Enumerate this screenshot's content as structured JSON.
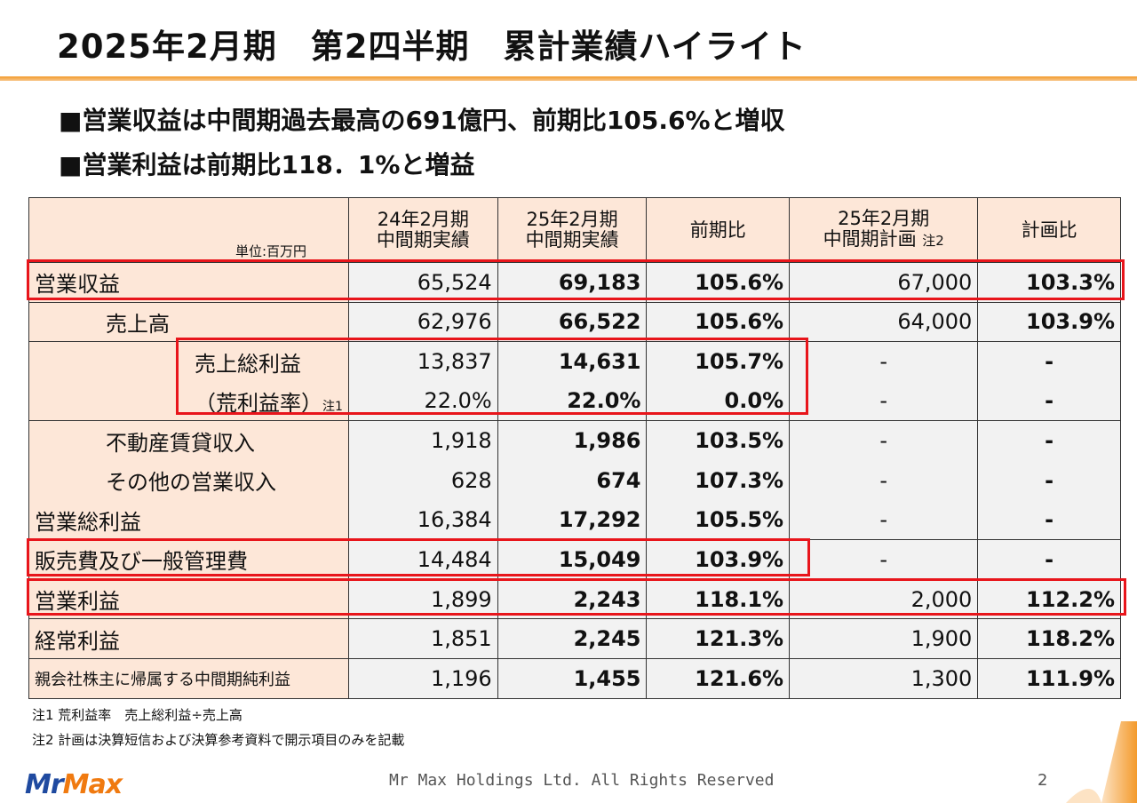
{
  "title": "2025年2月期　第2四半期　累計業績ハイライト",
  "bullets": [
    "■営業収益は中間期過去最高の691億円、前期比105.6%と増収",
    "■営業利益は前期比118．1%と増益"
  ],
  "table": {
    "unit": "単位:百万円",
    "headers": [
      {
        "l1": "24年2月期",
        "l2": "中間期実績"
      },
      {
        "l1": "25年2月期",
        "l2": "中間期実績"
      },
      {
        "l1": "前期比",
        "l2": ""
      },
      {
        "l1": "25年2月期",
        "l2": "中間期計画",
        "note": "注2"
      },
      {
        "l1": "計画比",
        "l2": ""
      }
    ],
    "rows": [
      {
        "label": "営業収益",
        "cells": [
          "65,524",
          "69,183",
          "105.6%",
          "67,000",
          "103.3%"
        ]
      },
      {
        "label": "売上高",
        "cells": [
          "62,976",
          "66,522",
          "105.6%",
          "64,000",
          "103.9%"
        ]
      },
      {
        "label": "売上総利益",
        "cells": [
          "13,837",
          "14,631",
          "105.7%",
          "-",
          "-"
        ]
      },
      {
        "label": "（荒利益率）",
        "note": "注1",
        "cells": [
          "22.0%",
          "22.0%",
          "0.0%",
          "-",
          "-"
        ]
      },
      {
        "label": "不動産賃貸収入",
        "cells": [
          "1,918",
          "1,986",
          "103.5%",
          "-",
          "-"
        ]
      },
      {
        "label": "その他の営業収入",
        "cells": [
          "628",
          "674",
          "107.3%",
          "-",
          "-"
        ]
      },
      {
        "label": "営業総利益",
        "cells": [
          "16,384",
          "17,292",
          "105.5%",
          "-",
          "-"
        ]
      },
      {
        "label": "販売費及び一般管理費",
        "cells": [
          "14,484",
          "15,049",
          "103.9%",
          "-",
          "-"
        ]
      },
      {
        "label": "営業利益",
        "cells": [
          "1,899",
          "2,243",
          "118.1%",
          "2,000",
          "112.2%"
        ]
      },
      {
        "label": "経常利益",
        "cells": [
          "1,851",
          "2,245",
          "121.3%",
          "1,900",
          "118.2%"
        ]
      },
      {
        "label": "親会社株主に帰属する中間期純利益",
        "cells": [
          "1,196",
          "1,455",
          "121.6%",
          "1,300",
          "111.9%"
        ]
      }
    ]
  },
  "footnotes": [
    "注1 荒利益率　売上総利益÷売上高",
    "注2 計画は決算短信および決算参考資料で開示項目のみを記載"
  ],
  "footer": {
    "logo": "MrMax",
    "copyright": "Mr Max Holdings Ltd. All Rights Reserved",
    "page": "2"
  },
  "colors": {
    "accent": "#f39a2b",
    "highlight_box": "#e8151b",
    "label_bg": "#fde7d8",
    "cell_bg": "#f2f2f2"
  }
}
